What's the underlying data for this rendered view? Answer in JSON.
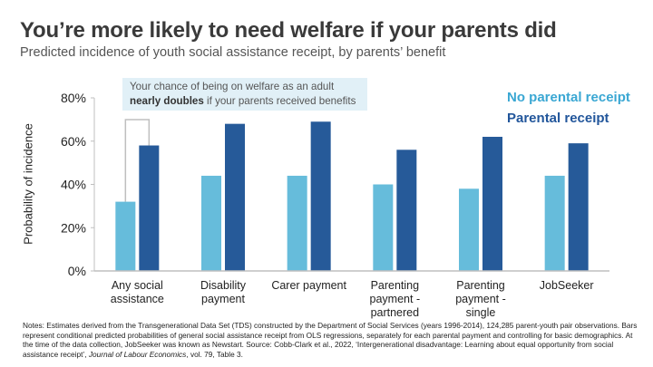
{
  "header": {
    "title": "You’re more likely to need welfare if your parents did",
    "subtitle": "Predicted incidence of youth social assistance receipt, by parents’ benefit"
  },
  "callout": {
    "line1": "Your chance of being on welfare as an adult",
    "bold": "nearly doubles",
    "rest": " if your parents received benefits"
  },
  "notes": {
    "text_before_italic": "Notes: Estimates derived from the Transgenerational Data Set (TDS) constructed by the Department of Social Services (years 1996-2014), 124,285 parent-youth pair observations. Bars represent conditional predicted probabilities of general social assistance receipt from OLS regressions, separately for each parental payment and controlling for basic demographics. At the time of the data collection, JobSeeker was known as Newstart. Source: Cobb-Clark et al., 2022, ‘Intergenerational disadvantage: Learning about equal opportunity from social assistance receipt’, ",
    "italic": "Journal of Labour Economics",
    "text_after_italic": ", vol. 79, Table 3."
  },
  "colors": {
    "no_parental": "#66bcdb",
    "parental": "#265a99",
    "legend_no_parental": "#3aa7d3",
    "legend_parental": "#22569b",
    "axis": "#bfbfbf",
    "bracket": "#bfbfbf"
  },
  "chart_data": {
    "type": "bar",
    "title": "You’re more likely to need welfare if your parents did",
    "subtitle": "Predicted incidence of youth social assistance receipt, by parents’ benefit",
    "xlabel": "",
    "ylabel": "Probability of incidence",
    "ylim": [
      0,
      80
    ],
    "yticks": [
      0,
      20,
      40,
      60,
      80
    ],
    "ytick_labels": [
      "0%",
      "20%",
      "40%",
      "60%",
      "80%"
    ],
    "grid": false,
    "legend_position": "top-right",
    "categories": [
      [
        "Any social",
        "assistance"
      ],
      [
        "Disability",
        "payment"
      ],
      [
        "Carer payment"
      ],
      [
        "Parenting",
        "payment -",
        "partnered"
      ],
      [
        "Parenting",
        "payment -",
        "single"
      ],
      [
        "JobSeeker"
      ]
    ],
    "series": [
      {
        "name": "No parental receipt",
        "values": [
          32,
          44,
          44,
          40,
          38,
          44
        ]
      },
      {
        "name": "Parental receipt",
        "values": [
          58,
          68,
          69,
          56,
          62,
          59
        ]
      }
    ],
    "annotation": "Your chance of being on welfare as an adult nearly doubles if your parents received benefits"
  }
}
